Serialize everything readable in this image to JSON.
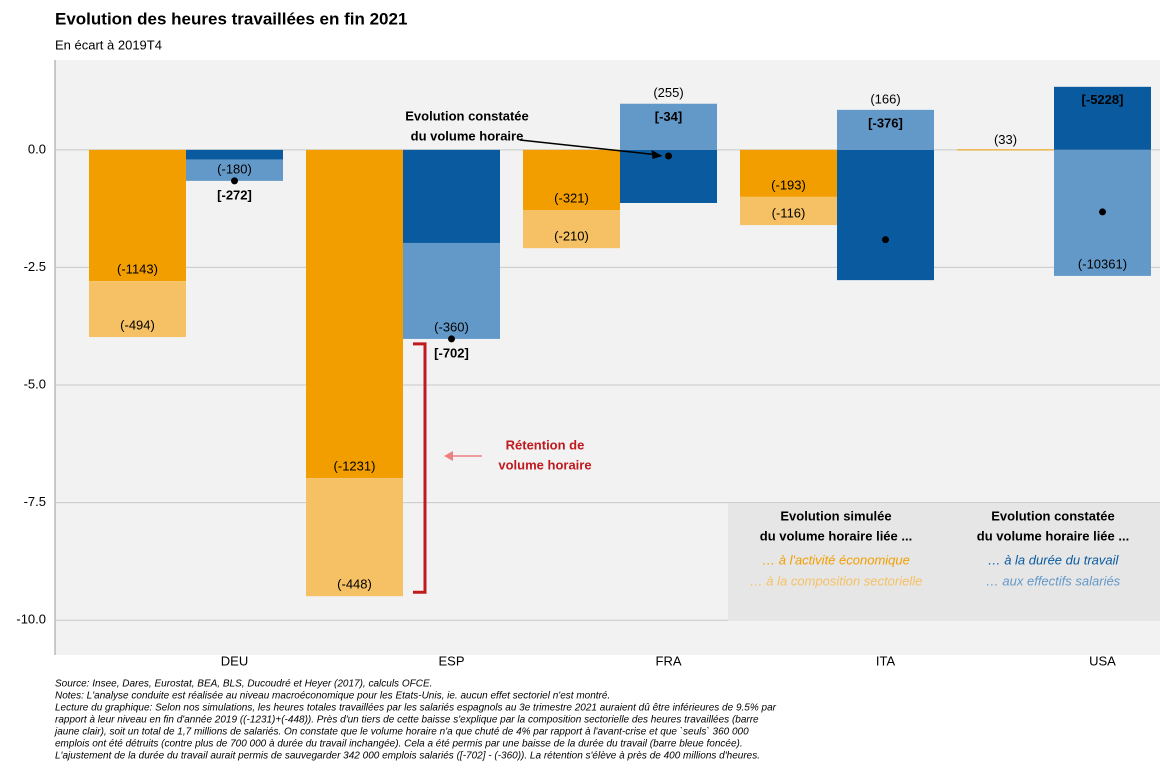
{
  "chart_data": {
    "type": "bar",
    "title": "Evolution des heures travaillées en fin 2021",
    "subtitle": "En écart à 2019T4",
    "categories": [
      "DEU",
      "ESP",
      "FRA",
      "ITA",
      "USA"
    ],
    "series": [
      {
        "name": "… à l'activité économique",
        "color": "#f29e00",
        "values": [
          -2.79,
          -6.98,
          -1.28,
          -1.0,
          0.01
        ],
        "labels": [
          "(-1143)",
          "(-1231)",
          "(-321)",
          "(-193)",
          "(33)"
        ]
      },
      {
        "name": "… à la composition sectorielle",
        "color": "#f5c164",
        "values": [
          -1.19,
          -2.51,
          -0.81,
          -0.6,
          0
        ],
        "labels": [
          "(-494)",
          "(-448)",
          "(-210)",
          "(-116)",
          null
        ]
      },
      {
        "name": "… à la durée du travail",
        "color": "#0a5aa0",
        "values": [
          -0.21,
          -1.98,
          -1.13,
          -2.77,
          1.34
        ],
        "labels": [
          "[-272]",
          "[-702]",
          "[-34]",
          "[-376]",
          "[-5228]"
        ]
      },
      {
        "name": "… aux effectifs salariés",
        "color": "#6399c8",
        "values": [
          -0.45,
          -2.04,
          0.98,
          0.85,
          -2.68
        ],
        "labels": [
          "(-180)",
          "(-360)",
          "(255)",
          "(166)",
          "(-10361)"
        ]
      }
    ],
    "totals": [
      -0.66,
      -4.02,
      -0.13,
      -1.91,
      -1.32
    ],
    "legend_titles": [
      [
        "Evolution simulée",
        "du volume horaire liée ..."
      ],
      [
        "Evolution constatée",
        "du volume horaire liée ..."
      ]
    ],
    "annotations": [
      [
        "Evolution constatée",
        "du volume horaire"
      ],
      [
        "Rétention de",
        "volume horaire"
      ]
    ],
    "ylim": [
      -10.74,
      1.91
    ],
    "yticks": [
      {
        "value": 0,
        "label": "0.0"
      },
      -2.5,
      {
        "value": -5,
        "label": "-5.0"
      },
      -7.5,
      {
        "value": -10,
        "label": "-10.0"
      }
    ],
    "grid": true,
    "notes": [
      "Source: Insee, Dares, Eurostat, BEA, BLS, Ducoudré et Heyer (2017), calculs OFCE.",
      "Notes: L'analyse conduite est réalisée au niveau macroéconomique pour les Etats-Unis, ie. aucun effet sectoriel n'est montré.",
      "Lecture du graphique: Selon nos simulations, les heures totales travaillées par les salariés espagnols au 3e trimestre 2021 auraient dû être inférieures de 9.5% par",
      "rapport à leur niveau en fin d'année 2019 ((-1231)+(-448)). Près d'un tiers de cette baisse s'explique par la composition sectorielle des heures travaillées (barre",
      "jaune clair), soit un total de 1,7 millions de salariés. On constate que le volume horaire n'a que chuté de 4% par rapport à l'avant-crise et que `seuls` 360 000",
      "emplois ont été détruits (contre plus de 700 000 à durée du travail inchangée). Cela a été permis par une baisse de la durée du travail (barre bleue foncée).",
      "L'ajustement de la durée du travail aurait permis de sauvegarder 342 000 emplois salariés ([-702] - (-360)). La rétention s'élève à près de 400 millions d'heures."
    ]
  }
}
